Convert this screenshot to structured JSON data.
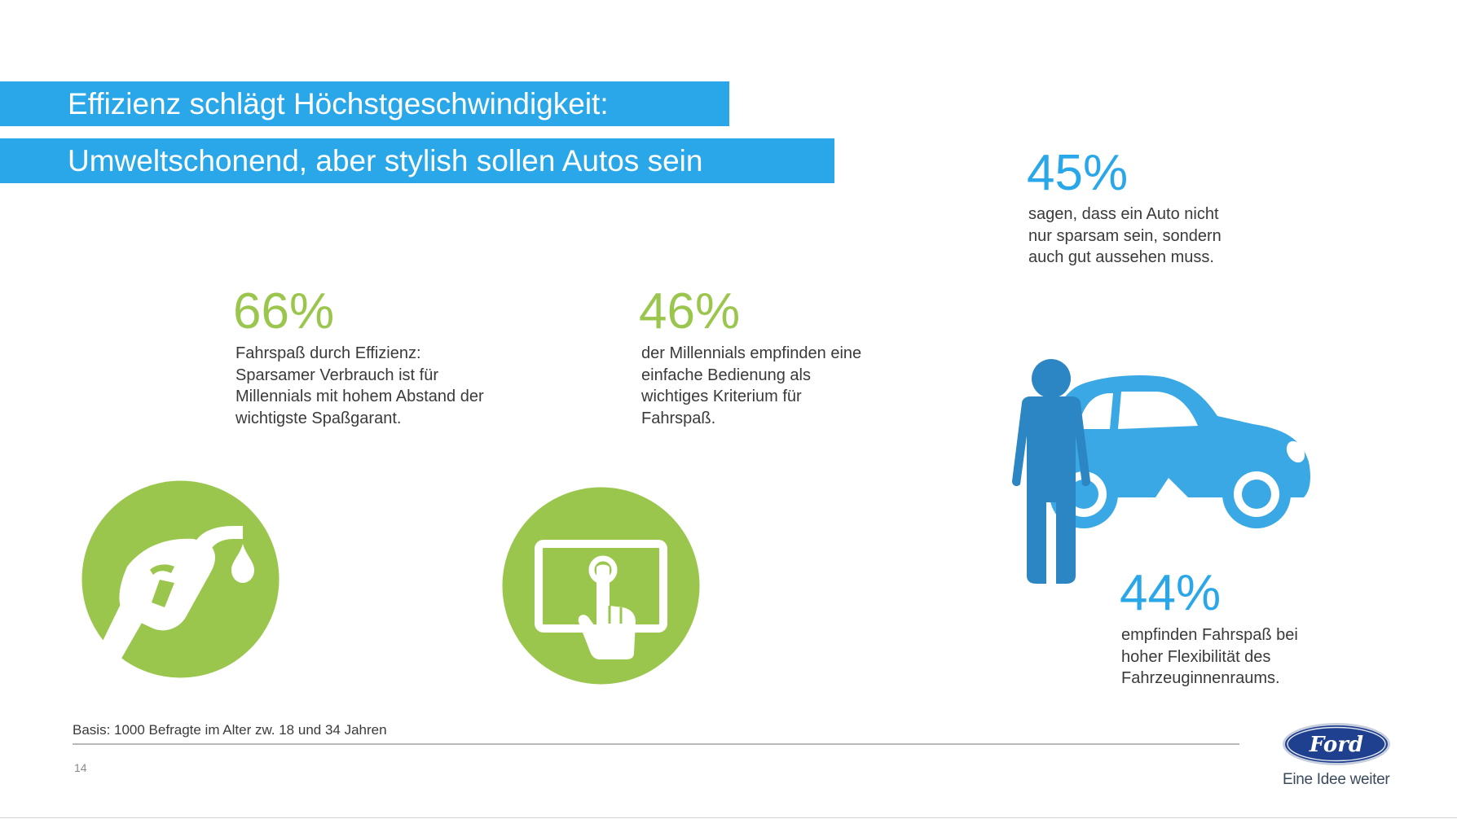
{
  "header": {
    "title_line1": "Effizienz schlägt Höchstgeschwindigkeit:",
    "title_line2": "Umweltschonend, aber stylish sollen Autos sein"
  },
  "stats": {
    "s66": {
      "value": "66%",
      "lines": [
        "Fahrspaß durch Effizienz:",
        "Sparsamer Verbrauch ist für",
        "Millennials mit hohem Abstand der",
        "wichtigste Spaßgarant."
      ]
    },
    "s46": {
      "value": "46%",
      "lines": [
        "der Millennials empfinden eine",
        "einfache Bedienung als",
        "wichtiges Kriterium für",
        "Fahrspaß."
      ]
    },
    "s45": {
      "value": "45%",
      "lines": [
        "sagen, dass ein Auto nicht",
        "nur sparsam sein, sondern",
        "auch gut aussehen muss."
      ]
    },
    "s44": {
      "value": "44%",
      "lines": [
        "empfinden Fahrspaß bei",
        "hoher Flexibilität des",
        "Fahrzeuginnenraums."
      ]
    }
  },
  "icons": {
    "fuel": "fuel-nozzle-icon",
    "tablet": "tablet-touch-icon",
    "person_car": "person-car-icon",
    "logo": "ford-logo"
  },
  "footer": {
    "basis": "Basis: 1000 Befragte im Alter zw. 18 und 34 Jahren",
    "page_number": "14",
    "logo_text": "Ford",
    "tagline": "Eine Idee weiter"
  },
  "colors": {
    "blue": "#2aa7e8",
    "green": "#9bc64e",
    "dark_blue": "#2d86c4",
    "ford_blue": "#1f3f8f"
  }
}
